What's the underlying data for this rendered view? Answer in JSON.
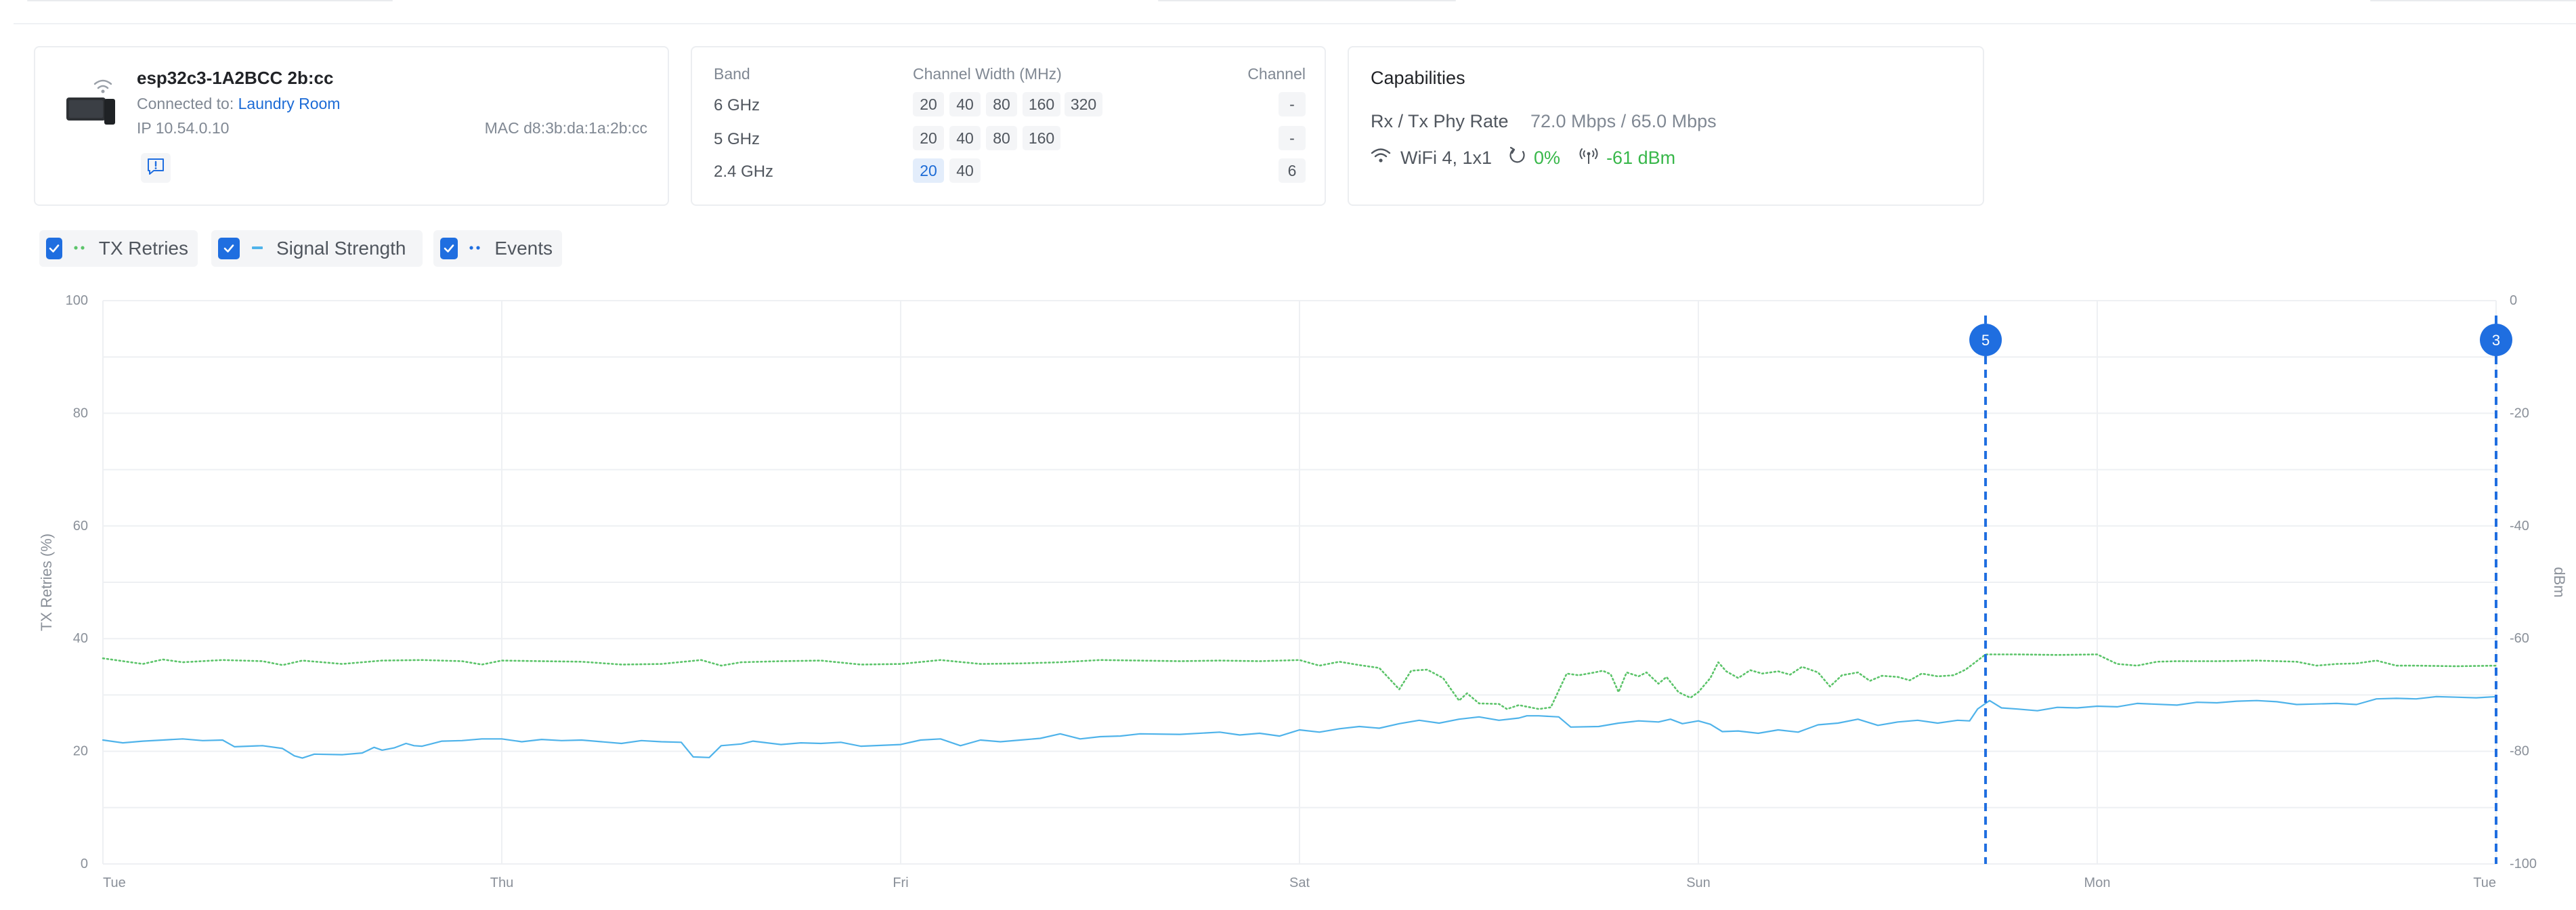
{
  "device": {
    "name": "esp32c3-1A2BCC 2b:cc",
    "connected_label": "Connected to:",
    "connected_to": "Laundry Room",
    "ip": "IP 10.54.0.10",
    "mac": "MAC d8:3b:da:1a:2b:cc"
  },
  "radio": {
    "band_header": "Band",
    "width_header": "Channel Width (MHz)",
    "channel_header": "Channel",
    "rows": [
      {
        "band": "6 GHz",
        "widths": [
          "20",
          "40",
          "80",
          "160",
          "320"
        ],
        "channel": "-"
      },
      {
        "band": "5 GHz",
        "widths": [
          "20",
          "40",
          "80",
          "160"
        ],
        "channel": "-"
      },
      {
        "band": "2.4 GHz",
        "widths": [
          "20",
          "40"
        ],
        "active_width": "20",
        "channel": "6"
      }
    ]
  },
  "capabilities": {
    "title": "Capabilities",
    "rate_label": "Rx / Tx Phy Rate",
    "rate_value": "72.0 Mbps / 65.0 Mbps",
    "wifi": "WiFi 4, 1x1",
    "retries": "0%",
    "signal": "-61 dBm"
  },
  "legend": {
    "tx_retries": "TX Retries",
    "signal_strength": "Signal Strength",
    "events": "Events"
  },
  "colors": {
    "accent": "#1f6ee0",
    "good": "#38b74a",
    "tx_series": "#5cc46a",
    "signal_series": "#4fb3ea",
    "event": "#1f6ee0",
    "link": "#1c6bd6"
  },
  "icons": {
    "device": "device-wifi-icon",
    "report": "chat-alert-icon",
    "wifi": "wifi-icon",
    "retries": "retry-icon",
    "signal": "antenna-signal-icon",
    "checkbox": "check-icon"
  },
  "chart_data": {
    "type": "line",
    "x_ticks": [
      "Tue",
      "Thu",
      "Fri",
      "Sat",
      "Sun",
      "Mon",
      "Tue"
    ],
    "xlim_days": [
      0,
      6
    ],
    "ylabel_left": "TX Retries (%)",
    "ylabel_right": "dBm",
    "left_ticks": [
      0,
      20,
      40,
      60,
      80,
      100
    ],
    "right_ticks": [
      0,
      -20,
      -40,
      -60,
      -80,
      -100
    ],
    "ylim_left": [
      0,
      100
    ],
    "ylim_right": [
      -100,
      0
    ],
    "grid": true,
    "series": [
      {
        "name": "TX Retries",
        "axis": "left",
        "style": "dotted",
        "points": [
          [
            0.0,
            36.5
          ],
          [
            0.1,
            35.5
          ],
          [
            0.15,
            36.3
          ],
          [
            0.2,
            35.8
          ],
          [
            0.3,
            36.2
          ],
          [
            0.4,
            36.0
          ],
          [
            0.45,
            35.3
          ],
          [
            0.5,
            36.1
          ],
          [
            0.55,
            35.8
          ],
          [
            0.6,
            35.5
          ],
          [
            0.7,
            36.1
          ],
          [
            0.8,
            36.2
          ],
          [
            0.9,
            36.0
          ],
          [
            0.95,
            35.4
          ],
          [
            1.0,
            36.1
          ],
          [
            1.1,
            36.0
          ],
          [
            1.2,
            35.9
          ],
          [
            1.3,
            35.4
          ],
          [
            1.4,
            35.5
          ],
          [
            1.5,
            36.2
          ],
          [
            1.55,
            35.2
          ],
          [
            1.6,
            35.8
          ],
          [
            1.7,
            36.0
          ],
          [
            1.8,
            36.1
          ],
          [
            1.9,
            35.4
          ],
          [
            2.0,
            35.5
          ],
          [
            2.1,
            36.2
          ],
          [
            2.2,
            35.5
          ],
          [
            2.3,
            35.6
          ],
          [
            2.4,
            35.8
          ],
          [
            2.5,
            36.2
          ],
          [
            2.6,
            36.1
          ],
          [
            2.7,
            36.0
          ],
          [
            2.8,
            36.1
          ],
          [
            2.9,
            36.0
          ],
          [
            3.0,
            36.2
          ],
          [
            3.05,
            35.2
          ],
          [
            3.1,
            35.9
          ],
          [
            3.15,
            35.3
          ],
          [
            3.2,
            34.8
          ],
          [
            3.25,
            31.0
          ],
          [
            3.28,
            34.3
          ],
          [
            3.32,
            34.5
          ],
          [
            3.36,
            33.0
          ],
          [
            3.38,
            31.0
          ],
          [
            3.4,
            29.0
          ],
          [
            3.42,
            30.3
          ],
          [
            3.45,
            28.5
          ],
          [
            3.5,
            28.4
          ],
          [
            3.52,
            27.5
          ],
          [
            3.55,
            28.2
          ],
          [
            3.6,
            27.5
          ],
          [
            3.63,
            27.8
          ],
          [
            3.67,
            33.8
          ],
          [
            3.7,
            33.5
          ],
          [
            3.74,
            34.0
          ],
          [
            3.76,
            34.3
          ],
          [
            3.78,
            33.7
          ],
          [
            3.8,
            30.5
          ],
          [
            3.82,
            34.0
          ],
          [
            3.85,
            33.3
          ],
          [
            3.87,
            34.0
          ],
          [
            3.9,
            32.0
          ],
          [
            3.92,
            33.2
          ],
          [
            3.95,
            30.5
          ],
          [
            3.98,
            29.5
          ],
          [
            4.0,
            30.5
          ],
          [
            4.03,
            33.0
          ],
          [
            4.05,
            35.8
          ],
          [
            4.07,
            34.2
          ],
          [
            4.1,
            33.0
          ],
          [
            4.13,
            34.4
          ],
          [
            4.16,
            33.8
          ],
          [
            4.2,
            34.2
          ],
          [
            4.23,
            33.6
          ],
          [
            4.26,
            35.0
          ],
          [
            4.3,
            34.0
          ],
          [
            4.33,
            31.5
          ],
          [
            4.36,
            33.5
          ],
          [
            4.4,
            34.0
          ],
          [
            4.43,
            32.5
          ],
          [
            4.46,
            33.4
          ],
          [
            4.5,
            33.2
          ],
          [
            4.53,
            32.6
          ],
          [
            4.56,
            33.8
          ],
          [
            4.6,
            33.3
          ],
          [
            4.64,
            33.5
          ],
          [
            4.67,
            34.5
          ],
          [
            4.72,
            37.2
          ],
          [
            4.8,
            37.2
          ],
          [
            4.9,
            37.1
          ],
          [
            5.0,
            37.2
          ],
          [
            5.05,
            35.5
          ],
          [
            5.1,
            35.2
          ],
          [
            5.15,
            35.9
          ],
          [
            5.2,
            36.0
          ],
          [
            5.3,
            36.0
          ],
          [
            5.4,
            36.1
          ],
          [
            5.5,
            35.9
          ],
          [
            5.55,
            35.2
          ],
          [
            5.6,
            35.5
          ],
          [
            5.65,
            35.6
          ],
          [
            5.7,
            36.1
          ],
          [
            5.75,
            35.2
          ],
          [
            5.8,
            35.2
          ],
          [
            5.9,
            35.1
          ],
          [
            6.0,
            35.2
          ]
        ]
      },
      {
        "name": "Signal Strength",
        "axis": "right",
        "style": "solid",
        "points": [
          [
            0.0,
            -78.0
          ],
          [
            0.05,
            -78.5
          ],
          [
            0.1,
            -78.2
          ],
          [
            0.15,
            -78.0
          ],
          [
            0.2,
            -77.8
          ],
          [
            0.25,
            -78.1
          ],
          [
            0.3,
            -78.0
          ],
          [
            0.33,
            -79.2
          ],
          [
            0.4,
            -79.0
          ],
          [
            0.45,
            -79.5
          ],
          [
            0.48,
            -80.8
          ],
          [
            0.5,
            -81.2
          ],
          [
            0.53,
            -80.5
          ],
          [
            0.6,
            -80.6
          ],
          [
            0.65,
            -80.3
          ],
          [
            0.68,
            -79.3
          ],
          [
            0.7,
            -79.8
          ],
          [
            0.73,
            -79.4
          ],
          [
            0.76,
            -78.6
          ],
          [
            0.78,
            -79.0
          ],
          [
            0.8,
            -79.1
          ],
          [
            0.85,
            -78.2
          ],
          [
            0.9,
            -78.1
          ],
          [
            0.95,
            -77.8
          ],
          [
            1.0,
            -77.8
          ],
          [
            1.05,
            -78.3
          ],
          [
            1.1,
            -77.9
          ],
          [
            1.15,
            -78.1
          ],
          [
            1.2,
            -78.0
          ],
          [
            1.25,
            -78.3
          ],
          [
            1.3,
            -78.6
          ],
          [
            1.35,
            -78.1
          ],
          [
            1.4,
            -78.3
          ],
          [
            1.45,
            -78.4
          ],
          [
            1.48,
            -81.0
          ],
          [
            1.52,
            -81.1
          ],
          [
            1.55,
            -79.0
          ],
          [
            1.6,
            -78.7
          ],
          [
            1.63,
            -78.2
          ],
          [
            1.7,
            -78.8
          ],
          [
            1.75,
            -78.5
          ],
          [
            1.8,
            -78.6
          ],
          [
            1.85,
            -78.4
          ],
          [
            1.9,
            -79.1
          ],
          [
            2.0,
            -78.8
          ],
          [
            2.05,
            -78.0
          ],
          [
            2.1,
            -77.8
          ],
          [
            2.15,
            -79.0
          ],
          [
            2.2,
            -78.0
          ],
          [
            2.25,
            -78.3
          ],
          [
            2.3,
            -78.0
          ],
          [
            2.35,
            -77.7
          ],
          [
            2.4,
            -76.9
          ],
          [
            2.45,
            -77.8
          ],
          [
            2.5,
            -77.4
          ],
          [
            2.55,
            -77.3
          ],
          [
            2.6,
            -76.9
          ],
          [
            2.7,
            -77.0
          ],
          [
            2.8,
            -76.6
          ],
          [
            2.85,
            -77.1
          ],
          [
            2.9,
            -76.8
          ],
          [
            2.95,
            -77.3
          ],
          [
            3.0,
            -76.2
          ],
          [
            3.05,
            -76.6
          ],
          [
            3.1,
            -76.0
          ],
          [
            3.15,
            -75.6
          ],
          [
            3.2,
            -75.9
          ],
          [
            3.25,
            -75.1
          ],
          [
            3.3,
            -74.5
          ],
          [
            3.35,
            -75.0
          ],
          [
            3.4,
            -74.3
          ],
          [
            3.45,
            -73.9
          ],
          [
            3.5,
            -74.5
          ],
          [
            3.55,
            -74.1
          ],
          [
            3.57,
            -73.7
          ],
          [
            3.6,
            -73.7
          ],
          [
            3.65,
            -73.9
          ],
          [
            3.68,
            -75.7
          ],
          [
            3.75,
            -75.6
          ],
          [
            3.8,
            -75.0
          ],
          [
            3.85,
            -74.6
          ],
          [
            3.9,
            -74.8
          ],
          [
            3.93,
            -74.3
          ],
          [
            3.96,
            -75.1
          ],
          [
            4.0,
            -74.6
          ],
          [
            4.03,
            -75.2
          ],
          [
            4.06,
            -76.5
          ],
          [
            4.1,
            -76.4
          ],
          [
            4.15,
            -76.8
          ],
          [
            4.2,
            -76.2
          ],
          [
            4.25,
            -76.6
          ],
          [
            4.3,
            -75.3
          ],
          [
            4.35,
            -75.0
          ],
          [
            4.4,
            -74.3
          ],
          [
            4.45,
            -75.4
          ],
          [
            4.5,
            -74.8
          ],
          [
            4.55,
            -74.5
          ],
          [
            4.6,
            -75.0
          ],
          [
            4.65,
            -74.5
          ],
          [
            4.68,
            -74.6
          ],
          [
            4.7,
            -72.5
          ],
          [
            4.73,
            -71.0
          ],
          [
            4.76,
            -72.3
          ],
          [
            4.8,
            -72.5
          ],
          [
            4.85,
            -72.8
          ],
          [
            4.9,
            -72.2
          ],
          [
            4.95,
            -72.3
          ],
          [
            5.0,
            -72.0
          ],
          [
            5.05,
            -72.1
          ],
          [
            5.1,
            -71.5
          ],
          [
            5.2,
            -71.8
          ],
          [
            5.25,
            -71.3
          ],
          [
            5.3,
            -71.4
          ],
          [
            5.35,
            -71.1
          ],
          [
            5.4,
            -71.0
          ],
          [
            5.45,
            -71.2
          ],
          [
            5.5,
            -71.7
          ],
          [
            5.55,
            -71.6
          ],
          [
            5.6,
            -71.5
          ],
          [
            5.65,
            -71.7
          ],
          [
            5.7,
            -70.7
          ],
          [
            5.75,
            -70.6
          ],
          [
            5.8,
            -70.7
          ],
          [
            5.85,
            -70.3
          ],
          [
            5.9,
            -70.4
          ],
          [
            5.95,
            -70.5
          ],
          [
            6.0,
            -70.3
          ]
        ]
      }
    ],
    "events": [
      {
        "x": 4.72,
        "count": 5
      },
      {
        "x": 6.0,
        "count": 3
      }
    ]
  }
}
